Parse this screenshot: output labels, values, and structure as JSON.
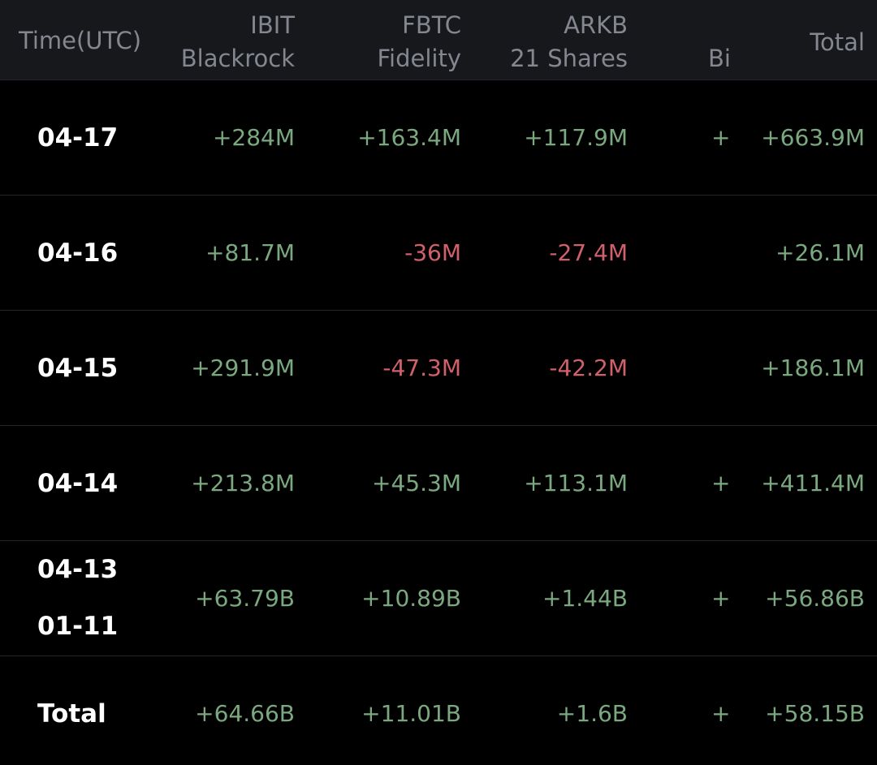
{
  "colors": {
    "background": "#000000",
    "header_bg": "#17181c",
    "header_text": "#84878f",
    "positive": "#7aa87f",
    "negative": "#d0616b",
    "date_text": "#ffffff"
  },
  "header": {
    "time": "Time(UTC)",
    "ibit_ticker": "IBIT",
    "ibit_issuer": "Blackrock",
    "fbtc_ticker": "FBTC",
    "fbtc_issuer": "Fidelity",
    "arkb_ticker": "ARKB",
    "arkb_issuer": "21 Shares",
    "clipped_issuer": "Bi",
    "total": "Total"
  },
  "rows": [
    {
      "date": "04-17",
      "ibit": "+284M",
      "fbtc": "+163.4M",
      "arkb": "+117.9M",
      "clipped": "+:",
      "total": "+663.9M"
    },
    {
      "date": "04-16",
      "ibit": "+81.7M",
      "fbtc": "-36M",
      "arkb": "-27.4M",
      "clipped": "",
      "total": "+26.1M"
    },
    {
      "date": "04-15",
      "ibit": "+291.9M",
      "fbtc": "-47.3M",
      "arkb": "-42.2M",
      "clipped": "",
      "total": "+186.1M"
    },
    {
      "date": "04-14",
      "ibit": "+213.8M",
      "fbtc": "+45.3M",
      "arkb": "+113.1M",
      "clipped": "+",
      "total": "+411.4M"
    },
    {
      "date": "04-13",
      "date2": "01-11",
      "ibit": "+63.79B",
      "fbtc": "+10.89B",
      "arkb": "+1.44B",
      "clipped": "+",
      "total": "+56.86B"
    },
    {
      "date": "Total",
      "ibit": "+64.66B",
      "fbtc": "+11.01B",
      "arkb": "+1.6B",
      "clipped": "+",
      "total": "+58.15B"
    }
  ]
}
